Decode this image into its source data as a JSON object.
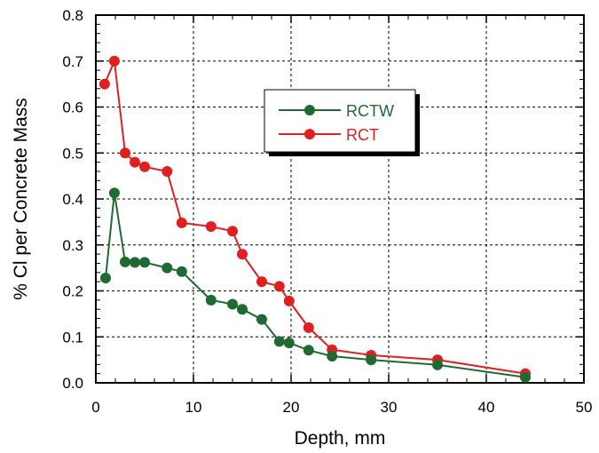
{
  "chart_data": {
    "type": "line",
    "title": "",
    "xlabel": "Depth, mm",
    "ylabel": "% Cl per Concrete Mass",
    "xlim": [
      0,
      50
    ],
    "ylim": [
      0,
      0.8
    ],
    "x_ticks": [
      "0",
      "10",
      "20",
      "30",
      "40",
      "50"
    ],
    "y_ticks": [
      "0.0",
      "0.1",
      "0.2",
      "0.3",
      "0.4",
      "0.5",
      "0.6",
      "0.7",
      "0.8"
    ],
    "grid": true,
    "legend_position": "upper-center",
    "series": [
      {
        "name": "RCTW",
        "color": "#1e6a32",
        "x": [
          1,
          1.9,
          3,
          4,
          5,
          7.3,
          8.8,
          11.8,
          14,
          15,
          17,
          18.8,
          19.8,
          21.8,
          24.2,
          28.2,
          35,
          44
        ],
        "y": [
          0.228,
          0.413,
          0.263,
          0.262,
          0.262,
          0.25,
          0.242,
          0.18,
          0.171,
          0.16,
          0.138,
          0.09,
          0.087,
          0.071,
          0.058,
          0.05,
          0.039,
          0.012
        ]
      },
      {
        "name": "RCT",
        "color": "#e02020",
        "x": [
          0.9,
          1.9,
          3,
          4,
          5,
          7.3,
          8.8,
          11.8,
          14,
          15,
          17,
          18.8,
          19.8,
          21.8,
          24.2,
          28.2,
          35,
          44
        ],
        "y": [
          0.65,
          0.7,
          0.5,
          0.48,
          0.47,
          0.46,
          0.348,
          0.34,
          0.33,
          0.28,
          0.22,
          0.21,
          0.178,
          0.12,
          0.072,
          0.06,
          0.05,
          0.02
        ]
      }
    ]
  }
}
